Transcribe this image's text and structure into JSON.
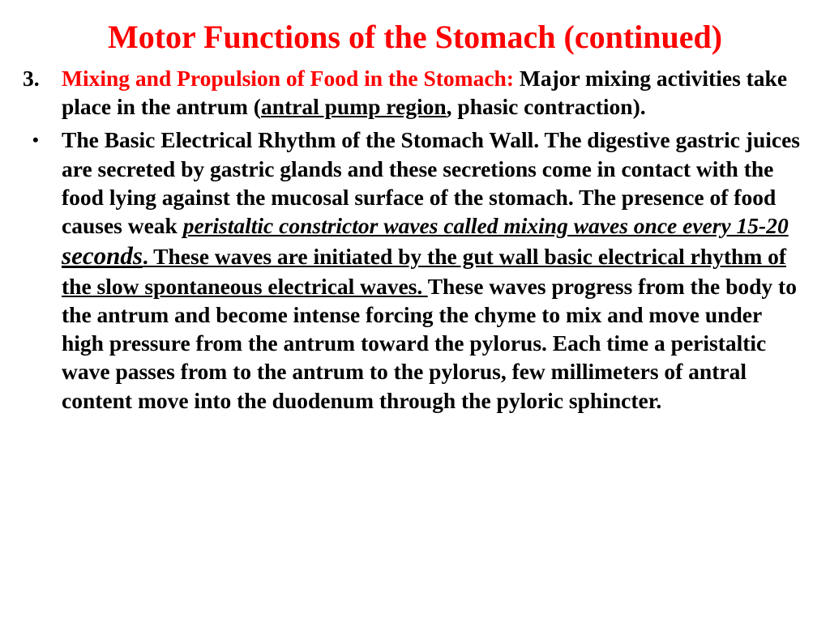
{
  "title": "Motor Functions of the Stomach (continued)",
  "item3": {
    "marker": "3.",
    "leadRed": "Mixing and Propulsion of Food in the Stomach:",
    "pre": " Major mixing activities take place in the antrum (",
    "ulPart": "antral pump region",
    "post": ", phasic contraction)."
  },
  "bullet": {
    "marker": "•",
    "p1": "The Basic Electrical Rhythm of the Stomach Wall. The digestive gastric juices are secreted by gastric glands and these secretions come in contact with the food lying against the mucosal surface of the stomach. The presence of food causes weak ",
    "u1": "peristaltic constrictor waves called mixing waves once every 15-20 ",
    "u1big": "seconds",
    "u1end": ". ",
    "u2": "These waves are initiated by the gut wall basic electrical rhythm of the slow spontaneous electrical waves. ",
    "p2": "These waves progress from the body to the antrum and become intense forcing the chyme to mix and move under high pressure from the antrum toward the pylorus. Each time a peristaltic wave passes from to the antrum to the pylorus, few millimeters of antral content move into the duodenum through the pyloric sphincter."
  },
  "colors": {
    "title": "#ff0000",
    "text": "#000000",
    "bg": "#ffffff"
  },
  "fonts": {
    "family": "Times New Roman",
    "title_size": 40,
    "body_size": 27.5
  }
}
